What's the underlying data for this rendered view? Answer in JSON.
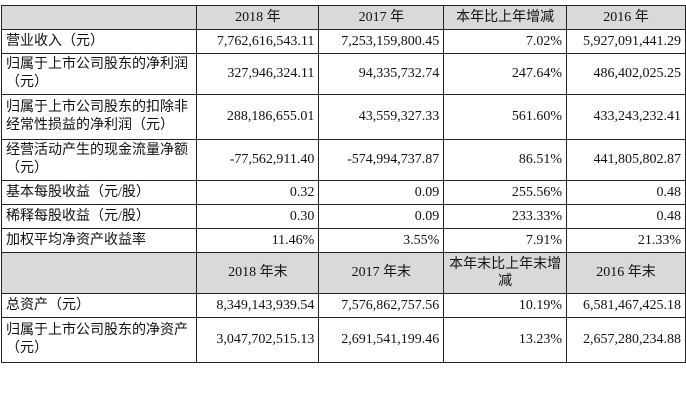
{
  "header1": [
    "",
    "2018 年",
    "2017 年",
    "本年比上年增减",
    "2016 年"
  ],
  "rows1": [
    {
      "label": "营业收入（元）",
      "c1": "7,762,616,543.11",
      "c2": "7,253,159,800.45",
      "c3": "7.02%",
      "c4": "5,927,091,441.29"
    },
    {
      "label": "归属于上市公司股东的净利润（元）",
      "c1": "327,946,324.11",
      "c2": "94,335,732.74",
      "c3": "247.64%",
      "c4": "486,402,025.25"
    },
    {
      "label": "归属于上市公司股东的扣除非经常性损益的净利润（元）",
      "c1": "288,186,655.01",
      "c2": "43,559,327.33",
      "c3": "561.60%",
      "c4": "433,243,232.41"
    },
    {
      "label": "经营活动产生的现金流量净额（元）",
      "c1": "-77,562,911.40",
      "c2": "-574,994,737.87",
      "c3": "86.51%",
      "c4": "441,805,802.87"
    },
    {
      "label": "基本每股收益（元/股）",
      "c1": "0.32",
      "c2": "0.09",
      "c3": "255.56%",
      "c4": "0.48"
    },
    {
      "label": "稀释每股收益（元/股）",
      "c1": "0.30",
      "c2": "0.09",
      "c3": "233.33%",
      "c4": "0.48"
    },
    {
      "label": "加权平均净资产收益率",
      "c1": "11.46%",
      "c2": "3.55%",
      "c3": "7.91%",
      "c4": "21.33%"
    }
  ],
  "header2": [
    "",
    "2018 年末",
    "2017 年末",
    "本年末比上年末增减",
    "2016 年末"
  ],
  "rows2": [
    {
      "label": "总资产（元）",
      "c1": "8,349,143,939.54",
      "c2": "7,576,862,757.56",
      "c3": "10.19%",
      "c4": "6,581,467,425.18"
    },
    {
      "label": "归属于上市公司股东的净资产（元）",
      "c1": "3,047,702,515.13",
      "c2": "2,691,541,199.46",
      "c3": "13.23%",
      "c4": "2,657,280,234.88"
    }
  ]
}
